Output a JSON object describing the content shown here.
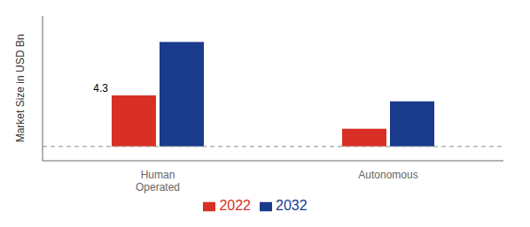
{
  "chart_data": {
    "type": "bar",
    "categories": [
      "Human\nOperated",
      "Autonomous"
    ],
    "series": [
      {
        "name": "2022",
        "color": "#d93025",
        "values": [
          4.3,
          1.5
        ]
      },
      {
        "name": "2032",
        "color": "#1a3a8c",
        "values": [
          8.8,
          3.8
        ]
      }
    ],
    "ylabel": "Market Size in USD Bn",
    "annotations": [
      {
        "text": "4.3",
        "category": "Human\nOperated",
        "series": "2022"
      }
    ],
    "ylim": [
      -1.2,
      11.0
    ],
    "yticks": [],
    "grid": false,
    "legend": "bottom",
    "tick_labels": "x"
  }
}
